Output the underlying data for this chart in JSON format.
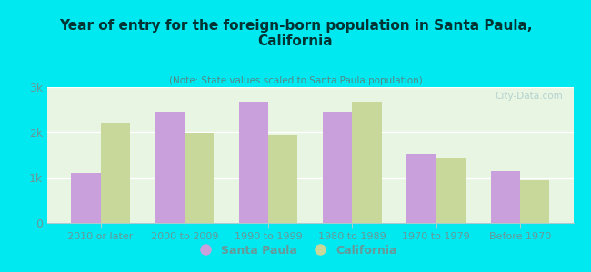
{
  "title": "Year of entry for the foreign-born population in Santa Paula,\nCalifornia",
  "subtitle": "(Note: State values scaled to Santa Paula population)",
  "categories": [
    "2010 or later",
    "2000 to 2009",
    "1990 to 1999",
    "1980 to 1989",
    "1970 to 1979",
    "Before 1970"
  ],
  "santa_paula": [
    1100,
    2450,
    2680,
    2450,
    1520,
    1150
  ],
  "california": [
    2200,
    1980,
    1950,
    2680,
    1450,
    950
  ],
  "santa_paula_color": "#c9a0dc",
  "california_color": "#c8d89a",
  "background_color": "#00e8f0",
  "plot_bg_top": "#e8f5e2",
  "plot_bg_bottom": "#f5fff5",
  "title_color": "#003333",
  "subtitle_color": "#558888",
  "tick_color": "#669999",
  "ylim": [
    0,
    3000
  ],
  "yticks": [
    0,
    1000,
    2000,
    3000
  ],
  "ytick_labels": [
    "0",
    "1k",
    "2k",
    "3k"
  ],
  "bar_width": 0.35,
  "watermark": "City-Data.com"
}
